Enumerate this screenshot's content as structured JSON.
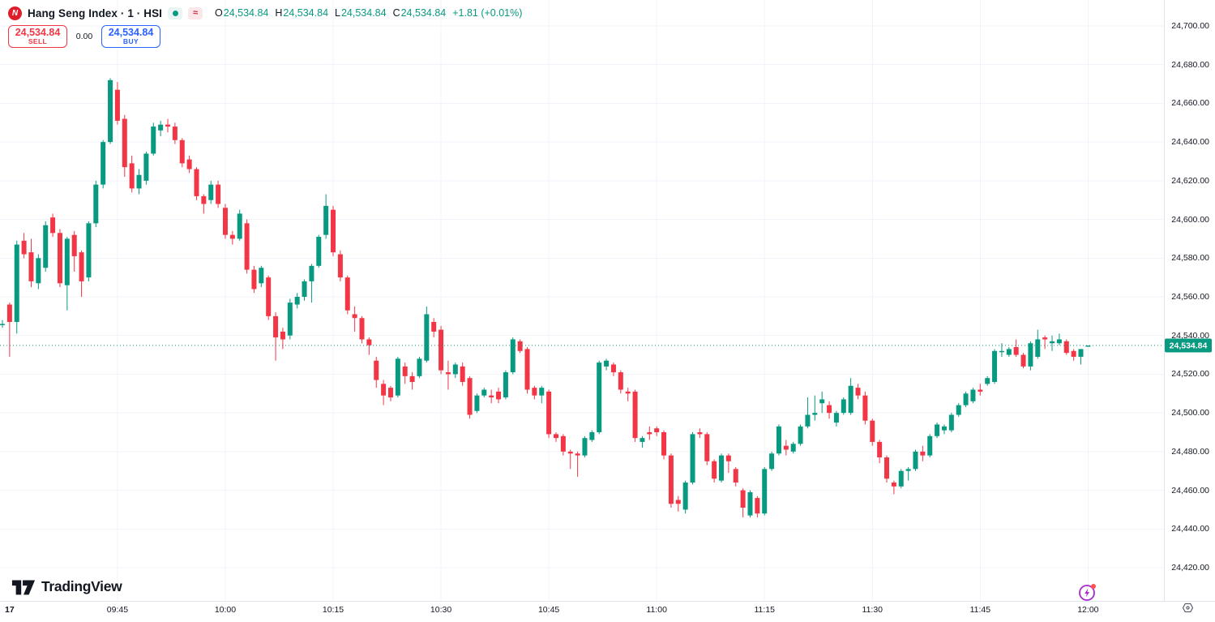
{
  "header": {
    "logo_letter": "N",
    "symbol_title": "Hang Seng Index · 1 · HSI",
    "market_status_icon": "green-dot",
    "delayed_icon": "≈",
    "ohlc": {
      "o_label": "O",
      "o_value": "24,534.84",
      "h_label": "H",
      "h_value": "24,534.84",
      "l_label": "L",
      "l_value": "24,534.84",
      "c_label": "C",
      "c_value": "24,534.84",
      "change": "+1.81 (+0.01%)"
    }
  },
  "trade_panel": {
    "sell_price": "24,534.84",
    "sell_label": "SELL",
    "spread": "0.00",
    "buy_price": "24,534.84",
    "buy_label": "BUY"
  },
  "watermark": {
    "brand": "TradingView"
  },
  "price_scale": {
    "ticks": [
      "24,700.00",
      "24,680.00",
      "24,660.00",
      "24,640.00",
      "24,620.00",
      "24,600.00",
      "24,580.00",
      "24,560.00",
      "24,540.00",
      "24,520.00",
      "24,500.00",
      "24,480.00",
      "24,460.00",
      "24,440.00",
      "24,420.00"
    ],
    "tick_values": [
      24700,
      24680,
      24660,
      24640,
      24620,
      24600,
      24580,
      24560,
      24540,
      24520,
      24500,
      24480,
      24460,
      24440,
      24420
    ],
    "last_price_label": "24,534.84"
  },
  "time_scale": {
    "ticks": [
      {
        "label": "17",
        "i": 1,
        "bold": true,
        "grid": false
      },
      {
        "label": "09:45",
        "i": 16
      },
      {
        "label": "10:00",
        "i": 31
      },
      {
        "label": "10:15",
        "i": 46
      },
      {
        "label": "10:30",
        "i": 61
      },
      {
        "label": "10:45",
        "i": 76
      },
      {
        "label": "11:00",
        "i": 91
      },
      {
        "label": "11:15",
        "i": 106
      },
      {
        "label": "11:30",
        "i": 121
      },
      {
        "label": "11:45",
        "i": 136
      },
      {
        "label": "12:00",
        "i": 151
      }
    ]
  },
  "colors": {
    "up": "#089981",
    "down": "#f23645",
    "grid": "#f0f3fa",
    "price_line": "#089981",
    "sell": "#f23645",
    "buy": "#2962ff",
    "spark": "#a72acd",
    "spark_dot": "#ff5252"
  },
  "chart_data": {
    "type": "candlestick",
    "title": "Hang Seng Index",
    "symbol": "HSI",
    "interval": "1",
    "session_start": "09:29",
    "session_end": "12:00",
    "ylabel": "price",
    "y_axis_range": [
      24420,
      24700
    ],
    "grid": true,
    "last_price": 24534.84,
    "last_change": "+1.81 (+0.01%)",
    "candles_format": [
      "open",
      "high",
      "low",
      "close"
    ],
    "candles": [
      [
        24546,
        24548,
        24544,
        24546
      ],
      [
        24556,
        24557,
        24529,
        24547
      ],
      [
        24547,
        24589,
        24541,
        24587
      ],
      [
        24589,
        24593,
        24580,
        24582
      ],
      [
        24583,
        24590,
        24565,
        24568
      ],
      [
        24567,
        24582,
        24564,
        24580
      ],
      [
        24575,
        24599,
        24573,
        24597
      ],
      [
        24601,
        24603,
        24591,
        24593
      ],
      [
        24593,
        24595,
        24565,
        24567
      ],
      [
        24566,
        24591,
        24553,
        24590
      ],
      [
        24592,
        24594,
        24573,
        24581
      ],
      [
        24583,
        24584,
        24560,
        24568
      ],
      [
        24570,
        24599,
        24568,
        24598
      ],
      [
        24598,
        24620,
        24596,
        24618
      ],
      [
        24618,
        24641,
        24616,
        24640
      ],
      [
        24640,
        24673,
        24639,
        24672
      ],
      [
        24667,
        24671,
        24649,
        24651
      ],
      [
        24652,
        24654,
        24622,
        24627
      ],
      [
        24629,
        24633,
        24614,
        24616
      ],
      [
        24616,
        24626,
        24613,
        24623
      ],
      [
        24620,
        24635,
        24618,
        24634
      ],
      [
        24634,
        24650,
        24633,
        24648
      ],
      [
        24646,
        24651,
        24643,
        24649
      ],
      [
        24649,
        24652,
        24645,
        24648
      ],
      [
        24648,
        24650,
        24639,
        24641
      ],
      [
        24641,
        24642,
        24627,
        24629
      ],
      [
        24631,
        24633,
        24624,
        24626
      ],
      [
        24626,
        24627,
        24610,
        24612
      ],
      [
        24612,
        24613,
        24603,
        24608
      ],
      [
        24610,
        24620,
        24608,
        24618
      ],
      [
        24618,
        24620,
        24606,
        24608
      ],
      [
        24606,
        24608,
        24590,
        24592
      ],
      [
        24592,
        24594,
        24587,
        24590
      ],
      [
        24590,
        24605,
        24589,
        24603
      ],
      [
        24598,
        24600,
        24572,
        24574
      ],
      [
        24574,
        24576,
        24562,
        24564
      ],
      [
        24567,
        24576,
        24565,
        24575
      ],
      [
        24570,
        24571,
        24548,
        24550
      ],
      [
        24550,
        24552,
        24527,
        24539
      ],
      [
        24542,
        24544,
        24533,
        24538
      ],
      [
        24540,
        24559,
        24538,
        24557
      ],
      [
        24556,
        24562,
        24554,
        24560
      ],
      [
        24560,
        24569,
        24558,
        24568
      ],
      [
        24568,
        24577,
        24557,
        24576
      ],
      [
        24576,
        24592,
        24575,
        24591
      ],
      [
        24592,
        24613,
        24590,
        24607
      ],
      [
        24605,
        24607,
        24581,
        24583
      ],
      [
        24582,
        24584,
        24568,
        24570
      ],
      [
        24570,
        24571,
        24551,
        24553
      ],
      [
        24551,
        24555,
        24542,
        24549
      ],
      [
        24549,
        24550,
        24536,
        24538
      ],
      [
        24538,
        24539,
        24530,
        24535
      ],
      [
        24527,
        24529,
        24513,
        24517
      ],
      [
        24515,
        24517,
        24504,
        24509
      ],
      [
        24513,
        24514,
        24506,
        24508
      ],
      [
        24509,
        24529,
        24508,
        24528
      ],
      [
        24524,
        24526,
        24515,
        24519
      ],
      [
        24519,
        24521,
        24512,
        24516
      ],
      [
        24519,
        24529,
        24518,
        24528
      ],
      [
        24527,
        24555,
        24526,
        24551
      ],
      [
        24547,
        24549,
        24539,
        24542
      ],
      [
        24543,
        24545,
        24520,
        24522
      ],
      [
        24521,
        24527,
        24512,
        24520
      ],
      [
        24520,
        24526,
        24518,
        24525
      ],
      [
        24524,
        24526,
        24514,
        24516
      ],
      [
        24518,
        24519,
        24497,
        24499
      ],
      [
        24501,
        24510,
        24500,
        24509
      ],
      [
        24509,
        24513,
        24508,
        24512
      ],
      [
        24509,
        24512,
        24505,
        24508
      ],
      [
        24511,
        24513,
        24505,
        24507
      ],
      [
        24508,
        24522,
        24507,
        24521
      ],
      [
        24521,
        24539,
        24520,
        24538
      ],
      [
        24537,
        24538,
        24531,
        24532
      ],
      [
        24533,
        24534,
        24510,
        24512
      ],
      [
        24513,
        24514,
        24507,
        24509
      ],
      [
        24509,
        24514,
        24505,
        24513
      ],
      [
        24511,
        24512,
        24487,
        24489
      ],
      [
        24489,
        24490,
        24485,
        24487
      ],
      [
        24488,
        24489,
        24478,
        24480
      ],
      [
        24480,
        24481,
        24471,
        24479
      ],
      [
        24479,
        24480,
        24467,
        24478
      ],
      [
        24478,
        24488,
        24477,
        24487
      ],
      [
        24486,
        24491,
        24485,
        24490
      ],
      [
        24490,
        24527,
        24489,
        24526
      ],
      [
        24524,
        24528,
        24522,
        24527
      ],
      [
        24525,
        24526,
        24519,
        24521
      ],
      [
        24521,
        24522,
        24510,
        24512
      ],
      [
        24511,
        24513,
        24506,
        24510
      ],
      [
        24511,
        24512,
        24485,
        24487
      ],
      [
        24485,
        24488,
        24482,
        24487
      ],
      [
        24490,
        24493,
        24486,
        24489
      ],
      [
        24492,
        24493,
        24488,
        24490
      ],
      [
        24490,
        24491,
        24476,
        24478
      ],
      [
        24478,
        24479,
        24451,
        24453
      ],
      [
        24455,
        24457,
        24449,
        24453
      ],
      [
        24450,
        24465,
        24448,
        24464
      ],
      [
        24464,
        24490,
        24463,
        24489
      ],
      [
        24490,
        24492,
        24487,
        24489
      ],
      [
        24489,
        24490,
        24473,
        24475
      ],
      [
        24475,
        24476,
        24464,
        24466
      ],
      [
        24465,
        24479,
        24464,
        24478
      ],
      [
        24478,
        24479,
        24469,
        24475
      ],
      [
        24471,
        24472,
        24462,
        24464
      ],
      [
        24460,
        24461,
        24446,
        24451
      ],
      [
        24447,
        24460,
        24446,
        24459
      ],
      [
        24456,
        24457,
        24446,
        24448
      ],
      [
        24448,
        24472,
        24447,
        24471
      ],
      [
        24471,
        24480,
        24470,
        24479
      ],
      [
        24479,
        24494,
        24478,
        24493
      ],
      [
        24483,
        24486,
        24478,
        24481
      ],
      [
        24480,
        24485,
        24479,
        24484
      ],
      [
        24484,
        24494,
        24483,
        24493
      ],
      [
        24493,
        24508,
        24492,
        24499
      ],
      [
        24499,
        24509,
        24496,
        24500
      ],
      [
        24505,
        24511,
        24500,
        24507
      ],
      [
        24504,
        24506,
        24497,
        24500
      ],
      [
        24495,
        24501,
        24493,
        24500
      ],
      [
        24500,
        24508,
        24499,
        24507
      ],
      [
        24500,
        24518,
        24499,
        24514
      ],
      [
        24513,
        24515,
        24507,
        24509
      ],
      [
        24509,
        24511,
        24494,
        24496
      ],
      [
        24496,
        24497,
        24483,
        24485
      ],
      [
        24485,
        24486,
        24474,
        24477
      ],
      [
        24477,
        24478,
        24464,
        24466
      ],
      [
        24464,
        24465,
        24458,
        24462
      ],
      [
        24462,
        24471,
        24461,
        24470
      ],
      [
        24470,
        24472,
        24465,
        24471
      ],
      [
        24471,
        24481,
        24470,
        24480
      ],
      [
        24480,
        24483,
        24475,
        24478
      ],
      [
        24478,
        24489,
        24477,
        24488
      ],
      [
        24488,
        24495,
        24487,
        24494
      ],
      [
        24491,
        24494,
        24489,
        24493
      ],
      [
        24491,
        24500,
        24490,
        24499
      ],
      [
        24499,
        24505,
        24498,
        24504
      ],
      [
        24504,
        24511,
        24503,
        24510
      ],
      [
        24506,
        24513,
        24505,
        24512
      ],
      [
        24512,
        24515,
        24509,
        24511
      ],
      [
        24515,
        24519,
        24514,
        24518
      ],
      [
        24516,
        24533,
        24515,
        24532
      ],
      [
        24532,
        24536,
        24529,
        24532
      ],
      [
        24530,
        24534,
        24529,
        24533
      ],
      [
        24534,
        24538,
        24529,
        24530
      ],
      [
        24530,
        24531,
        24523,
        24524
      ],
      [
        24524,
        24537,
        24522,
        24536
      ],
      [
        24529,
        24543,
        24528,
        24538
      ],
      [
        24539,
        24540,
        24533,
        24538
      ],
      [
        24536,
        24540,
        24532,
        24537
      ],
      [
        24536,
        24541,
        24535,
        24538
      ],
      [
        24537,
        24538,
        24530,
        24531
      ],
      [
        24532,
        24533,
        24527,
        24529
      ],
      [
        24529,
        24533,
        24525,
        24533
      ],
      [
        24534.84,
        24534.84,
        24534.84,
        24534.84
      ]
    ]
  }
}
